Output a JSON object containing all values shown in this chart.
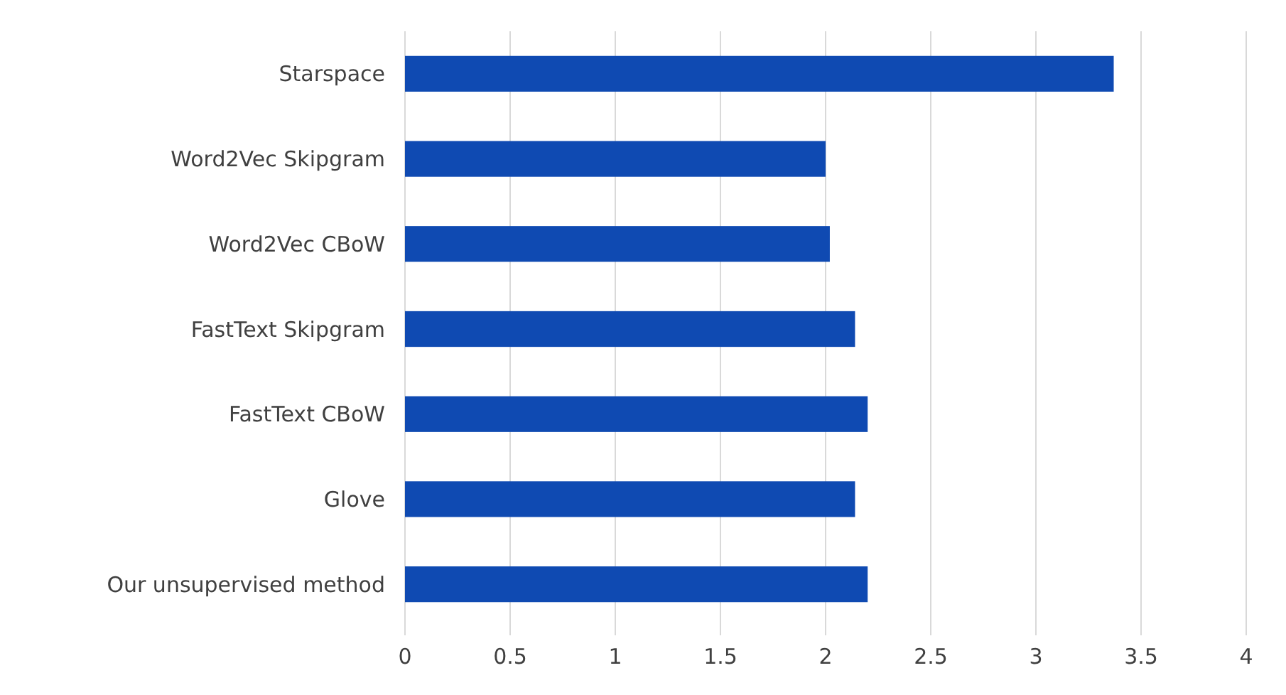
{
  "chart_data": {
    "type": "bar",
    "orientation": "horizontal",
    "categories": [
      "Starspace",
      "Word2Vec Skipgram",
      "Word2Vec CBoW",
      "FastText Skipgram",
      "FastText CBoW",
      "Glove",
      "Our unsupervised method"
    ],
    "values": [
      3.37,
      2.0,
      2.02,
      2.14,
      2.2,
      2.14,
      2.2
    ],
    "color": "#0f4ab2",
    "xlim": [
      0,
      4
    ],
    "xticks": [
      0,
      0.5,
      1,
      1.5,
      2,
      2.5,
      3,
      3.5,
      4
    ],
    "grid": "x"
  }
}
